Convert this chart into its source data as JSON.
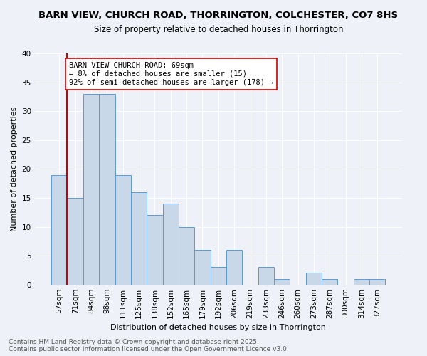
{
  "title1": "BARN VIEW, CHURCH ROAD, THORRINGTON, COLCHESTER, CO7 8HS",
  "title2": "Size of property relative to detached houses in Thorrington",
  "xlabel": "Distribution of detached houses by size in Thorrington",
  "ylabel": "Number of detached properties",
  "categories": [
    "57sqm",
    "71sqm",
    "84sqm",
    "98sqm",
    "111sqm",
    "125sqm",
    "138sqm",
    "152sqm",
    "165sqm",
    "179sqm",
    "192sqm",
    "206sqm",
    "219sqm",
    "233sqm",
    "246sqm",
    "260sqm",
    "273sqm",
    "287sqm",
    "300sqm",
    "314sqm",
    "327sqm"
  ],
  "values": [
    19,
    15,
    33,
    33,
    19,
    16,
    12,
    14,
    10,
    6,
    3,
    6,
    0,
    3,
    1,
    0,
    2,
    1,
    0,
    1,
    1
  ],
  "bar_color": "#c8d8e8",
  "bar_edge_color": "#5b9bd5",
  "subject_label": "BARN VIEW CHURCH ROAD: 69sqm",
  "subject_pct_smaller": "8% of detached houses are smaller (15)",
  "subject_pct_larger": "92% of semi-detached houses are larger (178)",
  "annotation_box_color": "#ffffff",
  "annotation_box_edge": "#cc0000",
  "red_line_color": "#cc0000",
  "red_line_x": 0.5,
  "ylim": [
    0,
    40
  ],
  "yticks": [
    0,
    5,
    10,
    15,
    20,
    25,
    30,
    35,
    40
  ],
  "background_color": "#eef2f8",
  "grid_color": "#ffffff",
  "footer1": "Contains HM Land Registry data © Crown copyright and database right 2025.",
  "footer2": "Contains public sector information licensed under the Open Government Licence v3.0.",
  "title1_fontsize": 9.5,
  "title2_fontsize": 8.5,
  "xlabel_fontsize": 8,
  "ylabel_fontsize": 8,
  "tick_fontsize": 7.5,
  "annot_fontsize": 7.5,
  "footer_fontsize": 6.5
}
